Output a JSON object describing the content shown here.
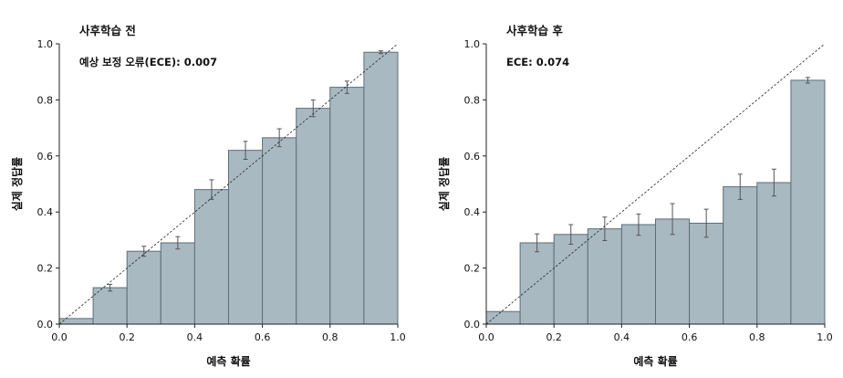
{
  "chart_data": [
    {
      "type": "bar",
      "title": "사후학습 전",
      "annotation": "예상 보정 오류(ECE): 0.007",
      "xlabel": "예측 확률",
      "ylabel": "실제 정답률",
      "xlim": [
        0,
        1
      ],
      "ylim": [
        0,
        1
      ],
      "x_ticks": [
        "0.0",
        "0.2",
        "0.4",
        "0.6",
        "0.8",
        "1.0"
      ],
      "y_ticks": [
        "0.0",
        "0.2",
        "0.4",
        "0.6",
        "0.8",
        "1.0"
      ],
      "bin_edges": [
        0.0,
        0.1,
        0.2,
        0.3,
        0.4,
        0.5,
        0.6,
        0.7,
        0.8,
        0.9,
        1.0
      ],
      "values": [
        0.02,
        0.13,
        0.26,
        0.29,
        0.48,
        0.62,
        0.665,
        0.77,
        0.845,
        0.97
      ],
      "errors": [
        0.0,
        0.012,
        0.018,
        0.022,
        0.035,
        0.032,
        0.032,
        0.03,
        0.022,
        0.005
      ],
      "diagonal": true,
      "bar_color": "#a9b9c2",
      "edge_color": "#5c6e78"
    },
    {
      "type": "bar",
      "title": "사후학습 후",
      "annotation": "ECE: 0.074",
      "xlabel": "예측 확률",
      "ylabel": "실제 정답률",
      "xlim": [
        0,
        1
      ],
      "ylim": [
        0,
        1
      ],
      "x_ticks": [
        "0.0",
        "0.2",
        "0.4",
        "0.6",
        "0.8",
        "1.0"
      ],
      "y_ticks": [
        "0.0",
        "0.2",
        "0.4",
        "0.6",
        "0.8",
        "1.0"
      ],
      "bin_edges": [
        0.0,
        0.1,
        0.2,
        0.3,
        0.4,
        0.5,
        0.6,
        0.7,
        0.8,
        0.9,
        1.0
      ],
      "values": [
        0.045,
        0.29,
        0.32,
        0.34,
        0.355,
        0.375,
        0.36,
        0.49,
        0.505,
        0.87
      ],
      "errors": [
        0.0,
        0.032,
        0.035,
        0.042,
        0.038,
        0.055,
        0.05,
        0.045,
        0.048,
        0.01
      ],
      "diagonal": true,
      "bar_color": "#a9b9c2",
      "edge_color": "#5c6e78"
    }
  ]
}
